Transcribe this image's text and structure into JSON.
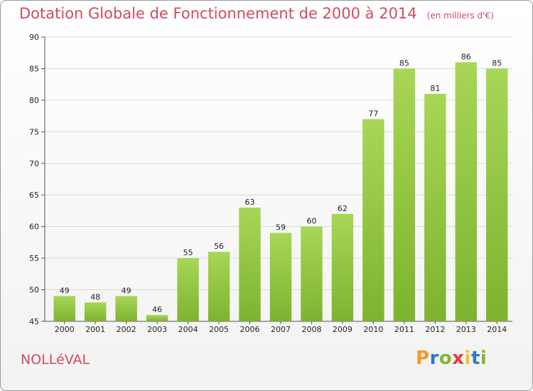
{
  "title": "Dotation Globale de Fonctionnement de 2000 à 2014",
  "unit": "(en milliers d'€)",
  "commune": "NOLLéVAL",
  "logo": {
    "text": "Proxiti",
    "letters": [
      "P",
      "r",
      "o",
      "x",
      "i",
      "t",
      "i"
    ],
    "colors": [
      "#f29a2e",
      "#2f77c8",
      "#7dbb2e",
      "#e23c3c",
      "#f2c12e",
      "#2f77c8",
      "#7dbb2e"
    ]
  },
  "colors": {
    "bar": "#7db32f",
    "bar_light": "#a8d657",
    "title": "#d34b5e",
    "axis": "#555555",
    "grid": "#d9d9d9"
  },
  "chart_data": {
    "type": "bar",
    "categories": [
      "2000",
      "2001",
      "2002",
      "2003",
      "2004",
      "2005",
      "2006",
      "2007",
      "2008",
      "2009",
      "2010",
      "2011",
      "2012",
      "2013",
      "2014"
    ],
    "values": [
      49,
      48,
      49,
      46,
      55,
      56,
      63,
      59,
      60,
      62,
      77,
      85,
      81,
      86,
      85
    ],
    "ylim": [
      45,
      90
    ],
    "yticks": [
      45,
      50,
      55,
      60,
      65,
      70,
      75,
      80,
      85,
      90
    ],
    "grid": true
  }
}
